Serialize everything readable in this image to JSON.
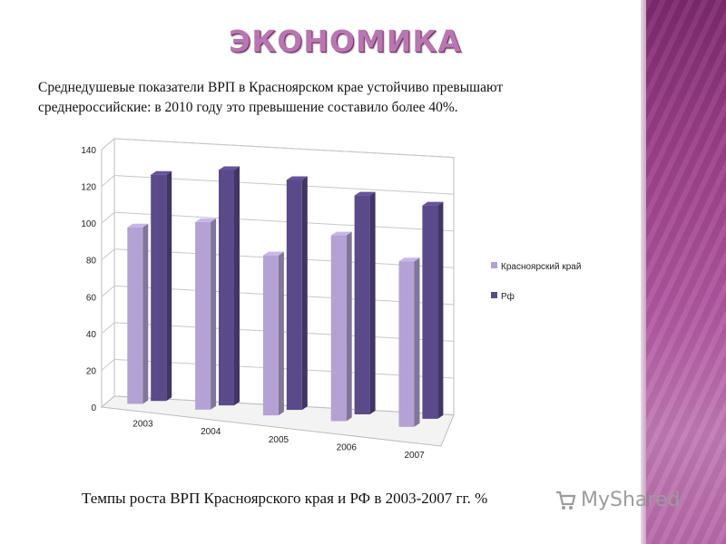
{
  "slide": {
    "title": "ЭКОНОМИКА",
    "intro_line1": "Среднедушевые показатели ВРП в Красноярском крае устойчиво превышают",
    "intro_line2": "среднероссийские: в 2010 году это превышение составило более 40%.",
    "caption": "Темпы роста ВРП Красноярского края и РФ в 2003-2007 гг. %",
    "watermark": "MyShared"
  },
  "colors": {
    "title": "#b877b0",
    "series1": "#b3a2d3",
    "series2": "#5b4a8a",
    "side_strip": "#9a3e88"
  },
  "chart_data": {
    "type": "bar",
    "categories": [
      "2003",
      "2004",
      "2005",
      "2006",
      "2007"
    ],
    "series": [
      {
        "name": "Красноярский край",
        "values": [
          96,
          102,
          87,
          101,
          90
        ]
      },
      {
        "name": "Рф",
        "values": [
          123,
          128,
          125,
          119,
          116
        ]
      }
    ],
    "ylim": [
      0,
      140
    ],
    "yticks": [
      "0",
      "20",
      "40",
      "60",
      "80",
      "100",
      "120",
      "140"
    ],
    "grid": true,
    "legend": "right",
    "style": "3d"
  }
}
